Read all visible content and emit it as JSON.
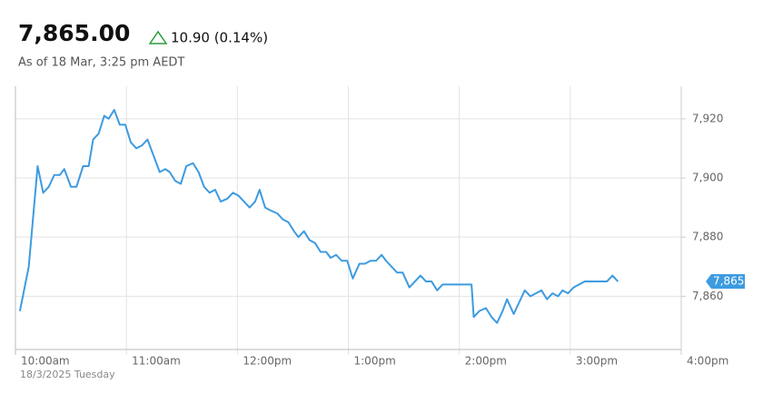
{
  "header": {
    "price": "7,865.00",
    "change": "10.90 (0.14%)",
    "as_of": "As of 18 Mar, 3:25 pm AEDT"
  },
  "chart_data": {
    "type": "line",
    "x": [
      10.04,
      10.12,
      10.2,
      10.25,
      10.3,
      10.35,
      10.4,
      10.44,
      10.5,
      10.55,
      10.61,
      10.66,
      10.7,
      10.75,
      10.8,
      10.84,
      10.89,
      10.94,
      10.99,
      11.04,
      11.09,
      11.14,
      11.19,
      11.24,
      11.3,
      11.35,
      11.39,
      11.44,
      11.49,
      11.54,
      11.6,
      11.65,
      11.7,
      11.75,
      11.8,
      11.85,
      11.91,
      11.96,
      12.01,
      12.06,
      12.11,
      12.16,
      12.2,
      12.25,
      12.3,
      12.36,
      12.41,
      12.46,
      12.51,
      12.55,
      12.6,
      12.65,
      12.7,
      12.75,
      12.8,
      12.84,
      12.89,
      12.94,
      12.99,
      13.04,
      13.1,
      13.15,
      13.2,
      13.25,
      13.3,
      13.34,
      13.39,
      13.44,
      13.49,
      13.55,
      13.6,
      13.65,
      13.7,
      13.75,
      13.8,
      13.85,
      13.9,
      13.95,
      14.0,
      14.06,
      14.11,
      14.13,
      14.18,
      14.24,
      14.29,
      14.34,
      14.39,
      14.43,
      14.49,
      14.54,
      14.59,
      14.64,
      14.69,
      14.74,
      14.79,
      14.84,
      14.89,
      14.93,
      14.98,
      15.03,
      15.08,
      15.13,
      15.18,
      15.23,
      15.28,
      15.33,
      15.38,
      15.43
    ],
    "series": [
      {
        "color": "#3d9be0",
        "values": [
          7855,
          7870,
          7904,
          7895,
          7897,
          7901,
          7901,
          7903,
          7897,
          7897,
          7904,
          7904,
          7913,
          7915,
          7921,
          7920,
          7923,
          7918,
          7918,
          7912,
          7910,
          7911,
          7913,
          7908,
          7902,
          7903,
          7902,
          7899,
          7898,
          7904,
          7905,
          7902,
          7897,
          7895,
          7896,
          7892,
          7893,
          7895,
          7894,
          7892,
          7890,
          7892,
          7896,
          7890,
          7889,
          7888,
          7886,
          7885,
          7882,
          7880,
          7882,
          7879,
          7878,
          7875,
          7875,
          7873,
          7874,
          7872,
          7872,
          7866,
          7871,
          7871,
          7872,
          7872,
          7874,
          7872,
          7870,
          7868,
          7868,
          7863,
          7865,
          7867,
          7865,
          7865,
          7862,
          7864,
          7864,
          7864,
          7864,
          7864,
          7864,
          7853,
          7855,
          7856,
          7853,
          7851,
          7855,
          7859,
          7854,
          7858,
          7862,
          7860,
          7861,
          7862,
          7859,
          7861,
          7860,
          7862,
          7861,
          7863,
          7864,
          7865,
          7865,
          7865,
          7865,
          7865,
          7867,
          7865
        ]
      }
    ],
    "xlim": [
      10,
      16
    ],
    "xticks": [
      {
        "value": 10,
        "label": "10:00am"
      },
      {
        "value": 11,
        "label": "11:00am"
      },
      {
        "value": 12,
        "label": "12:00pm"
      },
      {
        "value": 13,
        "label": "1:00pm"
      },
      {
        "value": 14,
        "label": "2:00pm"
      },
      {
        "value": 15,
        "label": "3:00pm"
      },
      {
        "value": 16,
        "label": "4:00pm"
      }
    ],
    "x_sublabel": "18/3/2025 Tuesday",
    "ylim": [
      7842,
      7931
    ],
    "yticks": [
      {
        "value": 7860,
        "label": "7,860"
      },
      {
        "value": 7880,
        "label": "7,880"
      },
      {
        "value": 7900,
        "label": "7,900"
      },
      {
        "value": 7920,
        "label": "7,920"
      }
    ],
    "last_value": {
      "value": 7865,
      "label": "7,865"
    },
    "grid": true
  }
}
